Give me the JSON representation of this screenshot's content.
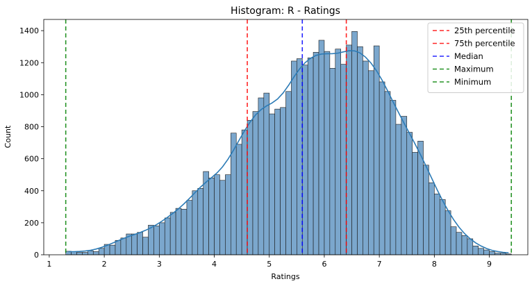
{
  "chart_data": {
    "type": "bar",
    "title": "Histogram: R - Ratings",
    "xlabel": "Ratings",
    "ylabel": "Count",
    "xlim": [
      0.9,
      9.7
    ],
    "ylim": [
      0,
      1470
    ],
    "xticks": [
      1,
      2,
      3,
      4,
      5,
      6,
      7,
      8,
      9
    ],
    "yticks": [
      0,
      200,
      400,
      600,
      800,
      1000,
      1200,
      1400
    ],
    "bins": {
      "start": 1.3,
      "width": 0.1,
      "counts": [
        22,
        20,
        15,
        15,
        25,
        20,
        40,
        65,
        60,
        90,
        105,
        130,
        130,
        140,
        110,
        185,
        180,
        200,
        230,
        265,
        290,
        285,
        340,
        400,
        415,
        520,
        480,
        500,
        465,
        500,
        760,
        690,
        780,
        840,
        895,
        980,
        1010,
        880,
        910,
        920,
        1020,
        1210,
        1225,
        1185,
        1230,
        1265,
        1340,
        1270,
        1165,
        1285,
        1190,
        1310,
        1395,
        1300,
        1210,
        1150,
        1305,
        1080,
        1020,
        965,
        815,
        865,
        765,
        640,
        710,
        560,
        450,
        380,
        345,
        275,
        175,
        140,
        120,
        100,
        55,
        40,
        30,
        20,
        10,
        10,
        5
      ]
    },
    "kde_color": "#2c7bb6",
    "bar_color": "#7ba7cd",
    "vlines": [
      {
        "name": "25th percentile",
        "x": 4.6,
        "color": "#ff0000"
      },
      {
        "name": "75th percentile",
        "x": 6.4,
        "color": "#ff0000"
      },
      {
        "name": "Median",
        "x": 5.6,
        "color": "#0000ff"
      },
      {
        "name": "Maximum",
        "x": 9.4,
        "color": "#008000"
      },
      {
        "name": "Minimum",
        "x": 1.3,
        "color": "#008000"
      }
    ],
    "grid": false,
    "legend_position": "top-right"
  }
}
